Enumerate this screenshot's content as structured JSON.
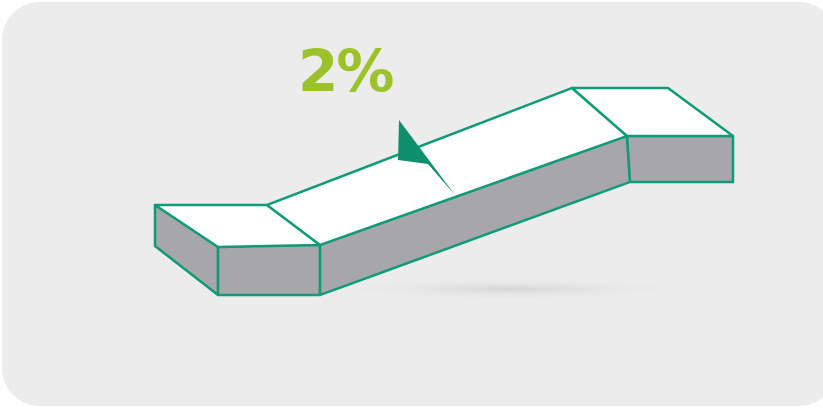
{
  "slope": {
    "label": "2%",
    "percent": 2
  },
  "colors": {
    "panel_background": "#ececec",
    "label_color": "#9cc22b",
    "edge_color": "#0f9a78",
    "arrow_color": "#0f8f6f",
    "top_face": "#ffffff",
    "side_face": "#a7a6ab",
    "shadow": "#dcdcdc"
  },
  "icons": {
    "direction_arrow": "down-slope-arrow-icon"
  }
}
